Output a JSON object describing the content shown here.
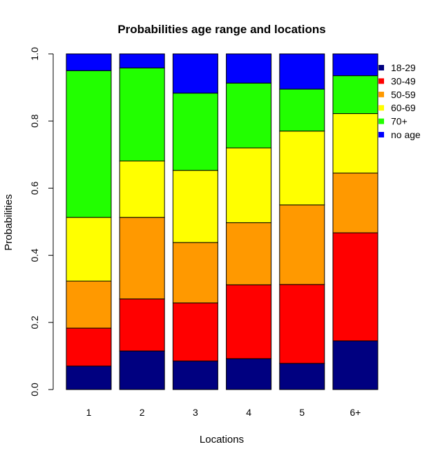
{
  "chart_data": {
    "type": "bar",
    "stacked": true,
    "title": "Probabilities age range and locations",
    "xlabel": "Locations",
    "ylabel": "Probabilities",
    "ylim": [
      0,
      1
    ],
    "yticks": [
      "0.0",
      "0.2",
      "0.4",
      "0.6",
      "0.8",
      "1.0"
    ],
    "categories": [
      "1",
      "2",
      "3",
      "4",
      "5",
      "6+"
    ],
    "grid": false,
    "legend_position": "right",
    "series": [
      {
        "name": "18-29",
        "color": "#000080",
        "values": [
          0.07,
          0.115,
          0.085,
          0.092,
          0.078,
          0.145
        ]
      },
      {
        "name": "30-49",
        "color": "#ff0000",
        "values": [
          0.113,
          0.155,
          0.173,
          0.22,
          0.235,
          0.322
        ]
      },
      {
        "name": "50-59",
        "color": "#ff9900",
        "values": [
          0.14,
          0.243,
          0.18,
          0.185,
          0.237,
          0.178
        ]
      },
      {
        "name": "60-69",
        "color": "#ffff00",
        "values": [
          0.19,
          0.168,
          0.215,
          0.223,
          0.22,
          0.177
        ]
      },
      {
        "name": "70+",
        "color": "#22ff00",
        "values": [
          0.437,
          0.277,
          0.23,
          0.193,
          0.125,
          0.113
        ]
      },
      {
        "name": "no age",
        "color": "#0000ff",
        "values": [
          0.05,
          0.042,
          0.117,
          0.087,
          0.105,
          0.065
        ]
      }
    ]
  }
}
